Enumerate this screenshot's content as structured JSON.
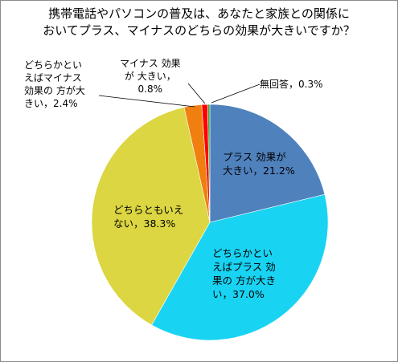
{
  "chart_data": {
    "type": "pie",
    "title": [
      "携帯電話やパソコンの普及は、あなたと家族との関係に",
      "おいてプラス、マイナスのどちらの効果が大きいですか？"
    ],
    "slices": [
      {
        "key": "plus",
        "value": 21.2,
        "color": "#4f81bd",
        "label": "プラス 効果が\n大きい，21.2%"
      },
      {
        "key": "rather-plus",
        "value": 37.0,
        "color": "#19d3f2",
        "label": "どちらかとい\nえばプラス 効\n果の 方が大き\nい，37.0%"
      },
      {
        "key": "neither",
        "value": 38.3,
        "color": "#dbd641",
        "label": "どちらともいえ\nない，38.3%"
      },
      {
        "key": "rather-minus",
        "value": 2.4,
        "color": "#f07f10",
        "label": "どちらかとい\nえばマイナス\n効果の 方が大\nきい，2.4%"
      },
      {
        "key": "minus",
        "value": 0.8,
        "color": "#ff0000",
        "label": "マイナス 効果\nが 大きい，\n0.8%"
      },
      {
        "key": "no-answer",
        "value": 0.3,
        "color": "#3aa23a",
        "label": "無回答，0.3%"
      }
    ]
  }
}
